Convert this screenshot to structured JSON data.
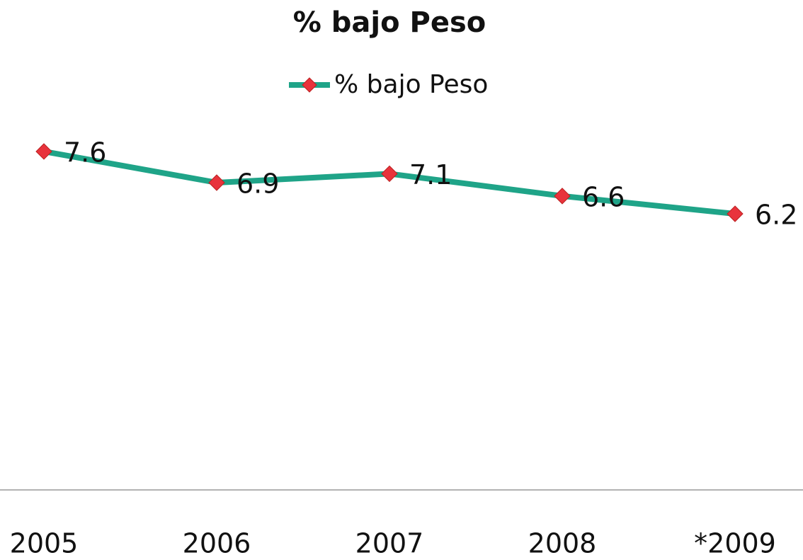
{
  "chart_data": {
    "type": "line",
    "title": "% bajo Peso",
    "categories": [
      "2005",
      "2006",
      "2007",
      "2008",
      "*2009"
    ],
    "series": [
      {
        "name": "% bajo Peso",
        "color": "#1fa488",
        "marker_color": "#e8333c",
        "values": [
          7.6,
          6.9,
          7.1,
          6.6,
          6.2
        ]
      }
    ],
    "ylim": [
      0,
      10
    ],
    "legend": "top"
  }
}
